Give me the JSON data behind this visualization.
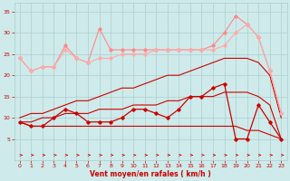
{
  "x": [
    0,
    1,
    2,
    3,
    4,
    5,
    6,
    7,
    8,
    9,
    10,
    11,
    12,
    13,
    14,
    15,
    16,
    17,
    18,
    19,
    20,
    21,
    22,
    23
  ],
  "line_gust_max": [
    24,
    21,
    22,
    22,
    27,
    24,
    23,
    31,
    26,
    26,
    26,
    26,
    26,
    26,
    26,
    26,
    26,
    27,
    30,
    34,
    32,
    29,
    21,
    11
  ],
  "line_gust_avg": [
    24,
    21,
    22,
    22,
    26,
    24,
    23,
    24,
    24,
    25,
    25,
    25,
    26,
    26,
    26,
    26,
    26,
    26,
    27,
    30,
    32,
    29,
    21,
    11
  ],
  "line_wind_obs": [
    9,
    8,
    8,
    10,
    12,
    11,
    9,
    9,
    9,
    10,
    12,
    12,
    11,
    10,
    12,
    15,
    15,
    17,
    18,
    5,
    5,
    13,
    9,
    5
  ],
  "line_reg_gust": [
    10,
    11,
    11,
    12,
    13,
    14,
    14,
    15,
    16,
    17,
    17,
    18,
    19,
    20,
    20,
    21,
    22,
    23,
    24,
    24,
    24,
    23,
    20,
    10
  ],
  "line_reg_wind": [
    9,
    9,
    10,
    10,
    11,
    11,
    11,
    12,
    12,
    12,
    13,
    13,
    13,
    14,
    14,
    15,
    15,
    15,
    16,
    16,
    16,
    15,
    13,
    5
  ],
  "line_low_flat": [
    9,
    8,
    8,
    8,
    8,
    8,
    8,
    8,
    8,
    8,
    8,
    8,
    8,
    8,
    8,
    8,
    8,
    8,
    8,
    8,
    7,
    7,
    6,
    5
  ],
  "bg_color": "#ceeaea",
  "grid_color": "#aacccc",
  "line_gust_max_color": "#ff8888",
  "line_gust_avg_color": "#ffaaaa",
  "line_wind_obs_color": "#cc0000",
  "line_reg_gust_color": "#cc0000",
  "line_reg_wind_color": "#cc0000",
  "line_low_color": "#cc0000",
  "arrow_color": "#cc0000",
  "tick_color": "#cc0000",
  "xlabel": "Vent moyen/en rafales ( km/h )",
  "ylim": [
    0,
    37
  ],
  "xlim": [
    -0.5,
    23.5
  ],
  "yticks": [
    5,
    10,
    15,
    20,
    25,
    30,
    35
  ],
  "xticks": [
    0,
    1,
    2,
    3,
    4,
    5,
    6,
    7,
    8,
    9,
    10,
    11,
    12,
    13,
    14,
    15,
    16,
    17,
    18,
    19,
    20,
    21,
    22,
    23
  ]
}
